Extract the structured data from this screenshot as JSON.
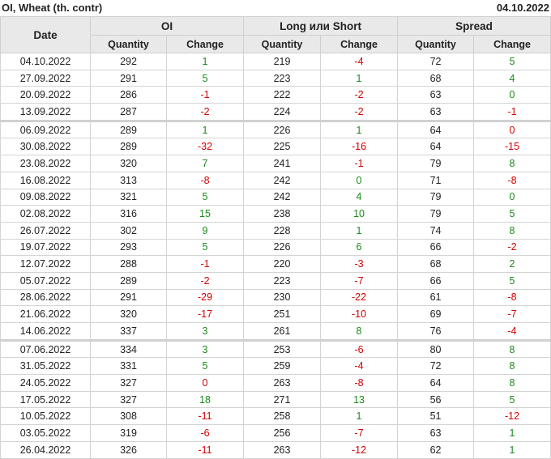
{
  "title": "OI, Wheat (th. contr)",
  "date": "04.10.2022",
  "headers": {
    "date": "Date",
    "groups": [
      "OI",
      "Long или Short",
      "Spread"
    ],
    "quantity": "Quantity",
    "change": "Change"
  },
  "colors": {
    "up": "#1a8a1a",
    "down": "#d40000"
  },
  "rows": [
    {
      "date": "04.10.2022",
      "oi_q": "292",
      "oi_c": "1",
      "oi_col": "up",
      "ls_q": "219",
      "ls_c": "-4",
      "ls_col": "down",
      "sp_q": "72",
      "sp_c": "5",
      "sp_col": "up"
    },
    {
      "date": "27.09.2022",
      "oi_q": "291",
      "oi_c": "5",
      "oi_col": "up",
      "ls_q": "223",
      "ls_c": "1",
      "ls_col": "up",
      "sp_q": "68",
      "sp_c": "4",
      "sp_col": "up"
    },
    {
      "date": "20.09.2022",
      "oi_q": "286",
      "oi_c": "-1",
      "oi_col": "down",
      "ls_q": "222",
      "ls_c": "-2",
      "ls_col": "down",
      "sp_q": "63",
      "sp_c": "0",
      "sp_col": "up"
    },
    {
      "date": "13.09.2022",
      "oi_q": "287",
      "oi_c": "-2",
      "oi_col": "down",
      "ls_q": "224",
      "ls_c": "-2",
      "ls_col": "down",
      "sp_q": "63",
      "sp_c": "-1",
      "sp_col": "down"
    },
    {
      "date": "06.09.2022",
      "oi_q": "289",
      "oi_c": "1",
      "oi_col": "up",
      "ls_q": "226",
      "ls_c": "1",
      "ls_col": "up",
      "sp_q": "64",
      "sp_c": "0",
      "sp_col": "down",
      "sep": true
    },
    {
      "date": "30.08.2022",
      "oi_q": "289",
      "oi_c": "-32",
      "oi_col": "down",
      "ls_q": "225",
      "ls_c": "-16",
      "ls_col": "down",
      "sp_q": "64",
      "sp_c": "-15",
      "sp_col": "down"
    },
    {
      "date": "23.08.2022",
      "oi_q": "320",
      "oi_c": "7",
      "oi_col": "up",
      "ls_q": "241",
      "ls_c": "-1",
      "ls_col": "down",
      "sp_q": "79",
      "sp_c": "8",
      "sp_col": "up"
    },
    {
      "date": "16.08.2022",
      "oi_q": "313",
      "oi_c": "-8",
      "oi_col": "down",
      "ls_q": "242",
      "ls_c": "0",
      "ls_col": "up",
      "sp_q": "71",
      "sp_c": "-8",
      "sp_col": "down"
    },
    {
      "date": "09.08.2022",
      "oi_q": "321",
      "oi_c": "5",
      "oi_col": "up",
      "ls_q": "242",
      "ls_c": "4",
      "ls_col": "up",
      "sp_q": "79",
      "sp_c": "0",
      "sp_col": "up"
    },
    {
      "date": "02.08.2022",
      "oi_q": "316",
      "oi_c": "15",
      "oi_col": "up",
      "ls_q": "238",
      "ls_c": "10",
      "ls_col": "up",
      "sp_q": "79",
      "sp_c": "5",
      "sp_col": "up"
    },
    {
      "date": "26.07.2022",
      "oi_q": "302",
      "oi_c": "9",
      "oi_col": "up",
      "ls_q": "228",
      "ls_c": "1",
      "ls_col": "up",
      "sp_q": "74",
      "sp_c": "8",
      "sp_col": "up"
    },
    {
      "date": "19.07.2022",
      "oi_q": "293",
      "oi_c": "5",
      "oi_col": "up",
      "ls_q": "226",
      "ls_c": "6",
      "ls_col": "up",
      "sp_q": "66",
      "sp_c": "-2",
      "sp_col": "down"
    },
    {
      "date": "12.07.2022",
      "oi_q": "288",
      "oi_c": "-1",
      "oi_col": "down",
      "ls_q": "220",
      "ls_c": "-3",
      "ls_col": "down",
      "sp_q": "68",
      "sp_c": "2",
      "sp_col": "up"
    },
    {
      "date": "05.07.2022",
      "oi_q": "289",
      "oi_c": "-2",
      "oi_col": "down",
      "ls_q": "223",
      "ls_c": "-7",
      "ls_col": "down",
      "sp_q": "66",
      "sp_c": "5",
      "sp_col": "up"
    },
    {
      "date": "28.06.2022",
      "oi_q": "291",
      "oi_c": "-29",
      "oi_col": "down",
      "ls_q": "230",
      "ls_c": "-22",
      "ls_col": "down",
      "sp_q": "61",
      "sp_c": "-8",
      "sp_col": "down"
    },
    {
      "date": "21.06.2022",
      "oi_q": "320",
      "oi_c": "-17",
      "oi_col": "down",
      "ls_q": "251",
      "ls_c": "-10",
      "ls_col": "down",
      "sp_q": "69",
      "sp_c": "-7",
      "sp_col": "down"
    },
    {
      "date": "14.06.2022",
      "oi_q": "337",
      "oi_c": "3",
      "oi_col": "up",
      "ls_q": "261",
      "ls_c": "8",
      "ls_col": "up",
      "sp_q": "76",
      "sp_c": "-4",
      "sp_col": "down"
    },
    {
      "date": "07.06.2022",
      "oi_q": "334",
      "oi_c": "3",
      "oi_col": "up",
      "ls_q": "253",
      "ls_c": "-6",
      "ls_col": "down",
      "sp_q": "80",
      "sp_c": "8",
      "sp_col": "up",
      "sep": true
    },
    {
      "date": "31.05.2022",
      "oi_q": "331",
      "oi_c": "5",
      "oi_col": "up",
      "ls_q": "259",
      "ls_c": "-4",
      "ls_col": "down",
      "sp_q": "72",
      "sp_c": "8",
      "sp_col": "up"
    },
    {
      "date": "24.05.2022",
      "oi_q": "327",
      "oi_c": "0",
      "oi_col": "down",
      "ls_q": "263",
      "ls_c": "-8",
      "ls_col": "down",
      "sp_q": "64",
      "sp_c": "8",
      "sp_col": "up"
    },
    {
      "date": "17.05.2022",
      "oi_q": "327",
      "oi_c": "18",
      "oi_col": "up",
      "ls_q": "271",
      "ls_c": "13",
      "ls_col": "up",
      "sp_q": "56",
      "sp_c": "5",
      "sp_col": "up"
    },
    {
      "date": "10.05.2022",
      "oi_q": "308",
      "oi_c": "-11",
      "oi_col": "down",
      "ls_q": "258",
      "ls_c": "1",
      "ls_col": "up",
      "sp_q": "51",
      "sp_c": "-12",
      "sp_col": "down"
    },
    {
      "date": "03.05.2022",
      "oi_q": "319",
      "oi_c": "-6",
      "oi_col": "down",
      "ls_q": "256",
      "ls_c": "-7",
      "ls_col": "down",
      "sp_q": "63",
      "sp_c": "1",
      "sp_col": "up"
    },
    {
      "date": "26.04.2022",
      "oi_q": "326",
      "oi_c": "-11",
      "oi_col": "down",
      "ls_q": "263",
      "ls_c": "-12",
      "ls_col": "down",
      "sp_q": "62",
      "sp_c": "1",
      "sp_col": "up"
    }
  ]
}
